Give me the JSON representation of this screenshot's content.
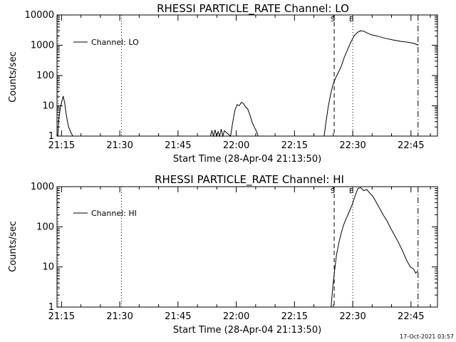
{
  "footer": "17-Oct-2021 03:57",
  "chart_data": [
    {
      "type": "line",
      "title": "RHESSI PARTICLE_RATE Channel: LO",
      "xlabel": "Start Time (28-Apr-04 21:13:50)",
      "ylabel": "Counts/sec",
      "yscale": "log",
      "xlim_min": [
        0,
        98
      ],
      "ylim": [
        1,
        10000
      ],
      "xticks": [
        {
          "min": 1.17,
          "label": "21:15"
        },
        {
          "min": 16.17,
          "label": "21:30"
        },
        {
          "min": 31.17,
          "label": "21:45"
        },
        {
          "min": 46.17,
          "label": "22:00"
        },
        {
          "min": 61.17,
          "label": "22:15"
        },
        {
          "min": 76.17,
          "label": "22:30"
        },
        {
          "min": 91.17,
          "label": "22:45"
        }
      ],
      "yticks": [
        {
          "v": 1,
          "label": "1"
        },
        {
          "v": 10,
          "label": "10"
        },
        {
          "v": 100,
          "label": "100"
        },
        {
          "v": 1000,
          "label": "1000"
        },
        {
          "v": 10000,
          "label": "10000"
        }
      ],
      "legend": {
        "position": "top-left",
        "entries": [
          "Channel: LO"
        ]
      },
      "markers": [
        {
          "min": 0.3,
          "style": "dotted",
          "label": ""
        },
        {
          "min": 16.6,
          "style": "dotted",
          "label": ""
        },
        {
          "min": 71.4,
          "style": "dashed",
          "label": "S"
        },
        {
          "min": 76.2,
          "style": "dotted",
          "label": "E"
        },
        {
          "min": 93.0,
          "style": "dashdot",
          "label": ""
        }
      ],
      "series": [
        {
          "name": "Channel: LO",
          "x": [
            0.2,
            0.5,
            0.9,
            1.3,
            1.6,
            2.0,
            2.3,
            2.7,
            3.0,
            3.4,
            3.7,
            4.1,
            4.4,
            39.5,
            39.9,
            40.3,
            40.7,
            41.1,
            41.5,
            41.9,
            42.3,
            42.7,
            43.1,
            44.7,
            45.3,
            45.8,
            46.4,
            46.9,
            47.5,
            48.0,
            48.6,
            49.1,
            49.7,
            50.2,
            50.8,
            51.3,
            51.8,
            68.8,
            69.3,
            69.9,
            70.5,
            71.1,
            71.7,
            72.4,
            73.2,
            74.0,
            74.8,
            75.6,
            76.5,
            77.3,
            78.1,
            79.0,
            80.0,
            81.0,
            82.5,
            84.5,
            86.5,
            88.5,
            90.5,
            92.0,
            93.0
          ],
          "values": [
            1,
            4,
            9,
            15,
            21,
            12,
            6,
            3,
            2,
            1.5,
            1.2,
            1,
            1,
            1,
            1.5,
            1,
            1.6,
            1,
            1.4,
            1,
            1.7,
            1,
            1.5,
            1,
            3,
            7,
            11,
            10,
            13,
            12,
            9,
            8,
            5,
            3,
            2,
            1.5,
            1,
            1,
            3,
            10,
            25,
            50,
            80,
            120,
            200,
            400,
            700,
            1200,
            2000,
            2600,
            3000,
            2900,
            2500,
            2200,
            2000,
            1700,
            1500,
            1350,
            1250,
            1150,
            1000
          ]
        }
      ]
    },
    {
      "type": "line",
      "title": "RHESSI PARTICLE_RATE Channel: HI",
      "xlabel": "Start Time (28-Apr-04 21:13:50)",
      "ylabel": "Counts/sec",
      "yscale": "log",
      "xlim_min": [
        0,
        98
      ],
      "ylim": [
        1,
        1000
      ],
      "xticks": [
        {
          "min": 1.17,
          "label": "21:15"
        },
        {
          "min": 16.17,
          "label": "21:30"
        },
        {
          "min": 31.17,
          "label": "21:45"
        },
        {
          "min": 46.17,
          "label": "22:00"
        },
        {
          "min": 61.17,
          "label": "22:15"
        },
        {
          "min": 76.17,
          "label": "22:30"
        },
        {
          "min": 91.17,
          "label": "22:45"
        }
      ],
      "yticks": [
        {
          "v": 1,
          "label": "1"
        },
        {
          "v": 10,
          "label": "10"
        },
        {
          "v": 100,
          "label": "100"
        },
        {
          "v": 1000,
          "label": "1000"
        }
      ],
      "legend": {
        "position": "top-left",
        "entries": [
          "Channel: HI"
        ]
      },
      "markers": [
        {
          "min": 0.3,
          "style": "dotted",
          "label": ""
        },
        {
          "min": 16.6,
          "style": "dotted",
          "label": ""
        },
        {
          "min": 71.4,
          "style": "dashed",
          "label": "S"
        },
        {
          "min": 76.2,
          "style": "dotted",
          "label": "E"
        },
        {
          "min": 93.0,
          "style": "dashdot",
          "label": ""
        }
      ],
      "series": [
        {
          "name": "Channel: HI",
          "x": [
            70.6,
            71.0,
            71.5,
            72.0,
            72.6,
            73.2,
            73.8,
            74.5,
            75.2,
            76.0,
            76.8,
            77.5,
            78.2,
            79.0,
            79.8,
            80.5,
            81.2,
            82.0,
            83.0,
            84.0,
            85.0,
            86.0,
            87.0,
            88.0,
            89.0,
            90.0,
            91.0,
            91.8,
            92.4,
            93.0
          ],
          "values": [
            1,
            3,
            8,
            20,
            40,
            70,
            110,
            160,
            230,
            350,
            600,
            900,
            950,
            800,
            850,
            700,
            600,
            450,
            300,
            200,
            140,
            90,
            60,
            40,
            25,
            15,
            10,
            9,
            7,
            8
          ]
        }
      ]
    }
  ]
}
